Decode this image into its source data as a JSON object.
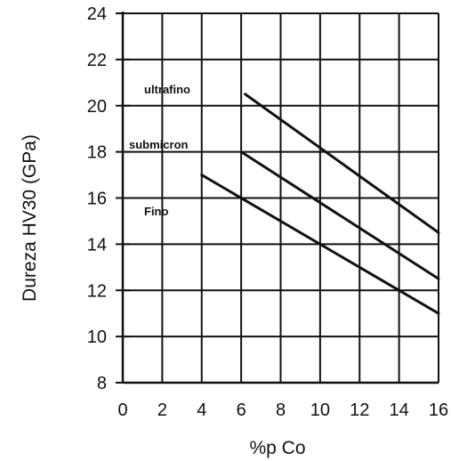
{
  "chart_data": {
    "type": "line",
    "title": "",
    "xlabel": "%p Co",
    "ylabel": "Dureza HV30 (GPa)",
    "xlim": [
      0,
      16
    ],
    "ylim": [
      8,
      24
    ],
    "x_ticks": [
      "0",
      "2",
      "4",
      "6",
      "8",
      "10",
      "12",
      "14",
      "16"
    ],
    "y_ticks": [
      "8",
      "10",
      "12",
      "14",
      "16",
      "18",
      "20",
      "22",
      "24"
    ],
    "grid": true,
    "series": [
      {
        "name": "ultrafino",
        "x": [
          6.2,
          16
        ],
        "y": [
          20.5,
          14.5
        ]
      },
      {
        "name": "submicron",
        "x": [
          6,
          16
        ],
        "y": [
          18,
          12.5
        ]
      },
      {
        "name": "Fino",
        "x": [
          4,
          16
        ],
        "y": [
          17,
          11
        ]
      }
    ]
  },
  "colors": {
    "grid": "#111111",
    "series": "#111111",
    "background": "#ffffff"
  }
}
